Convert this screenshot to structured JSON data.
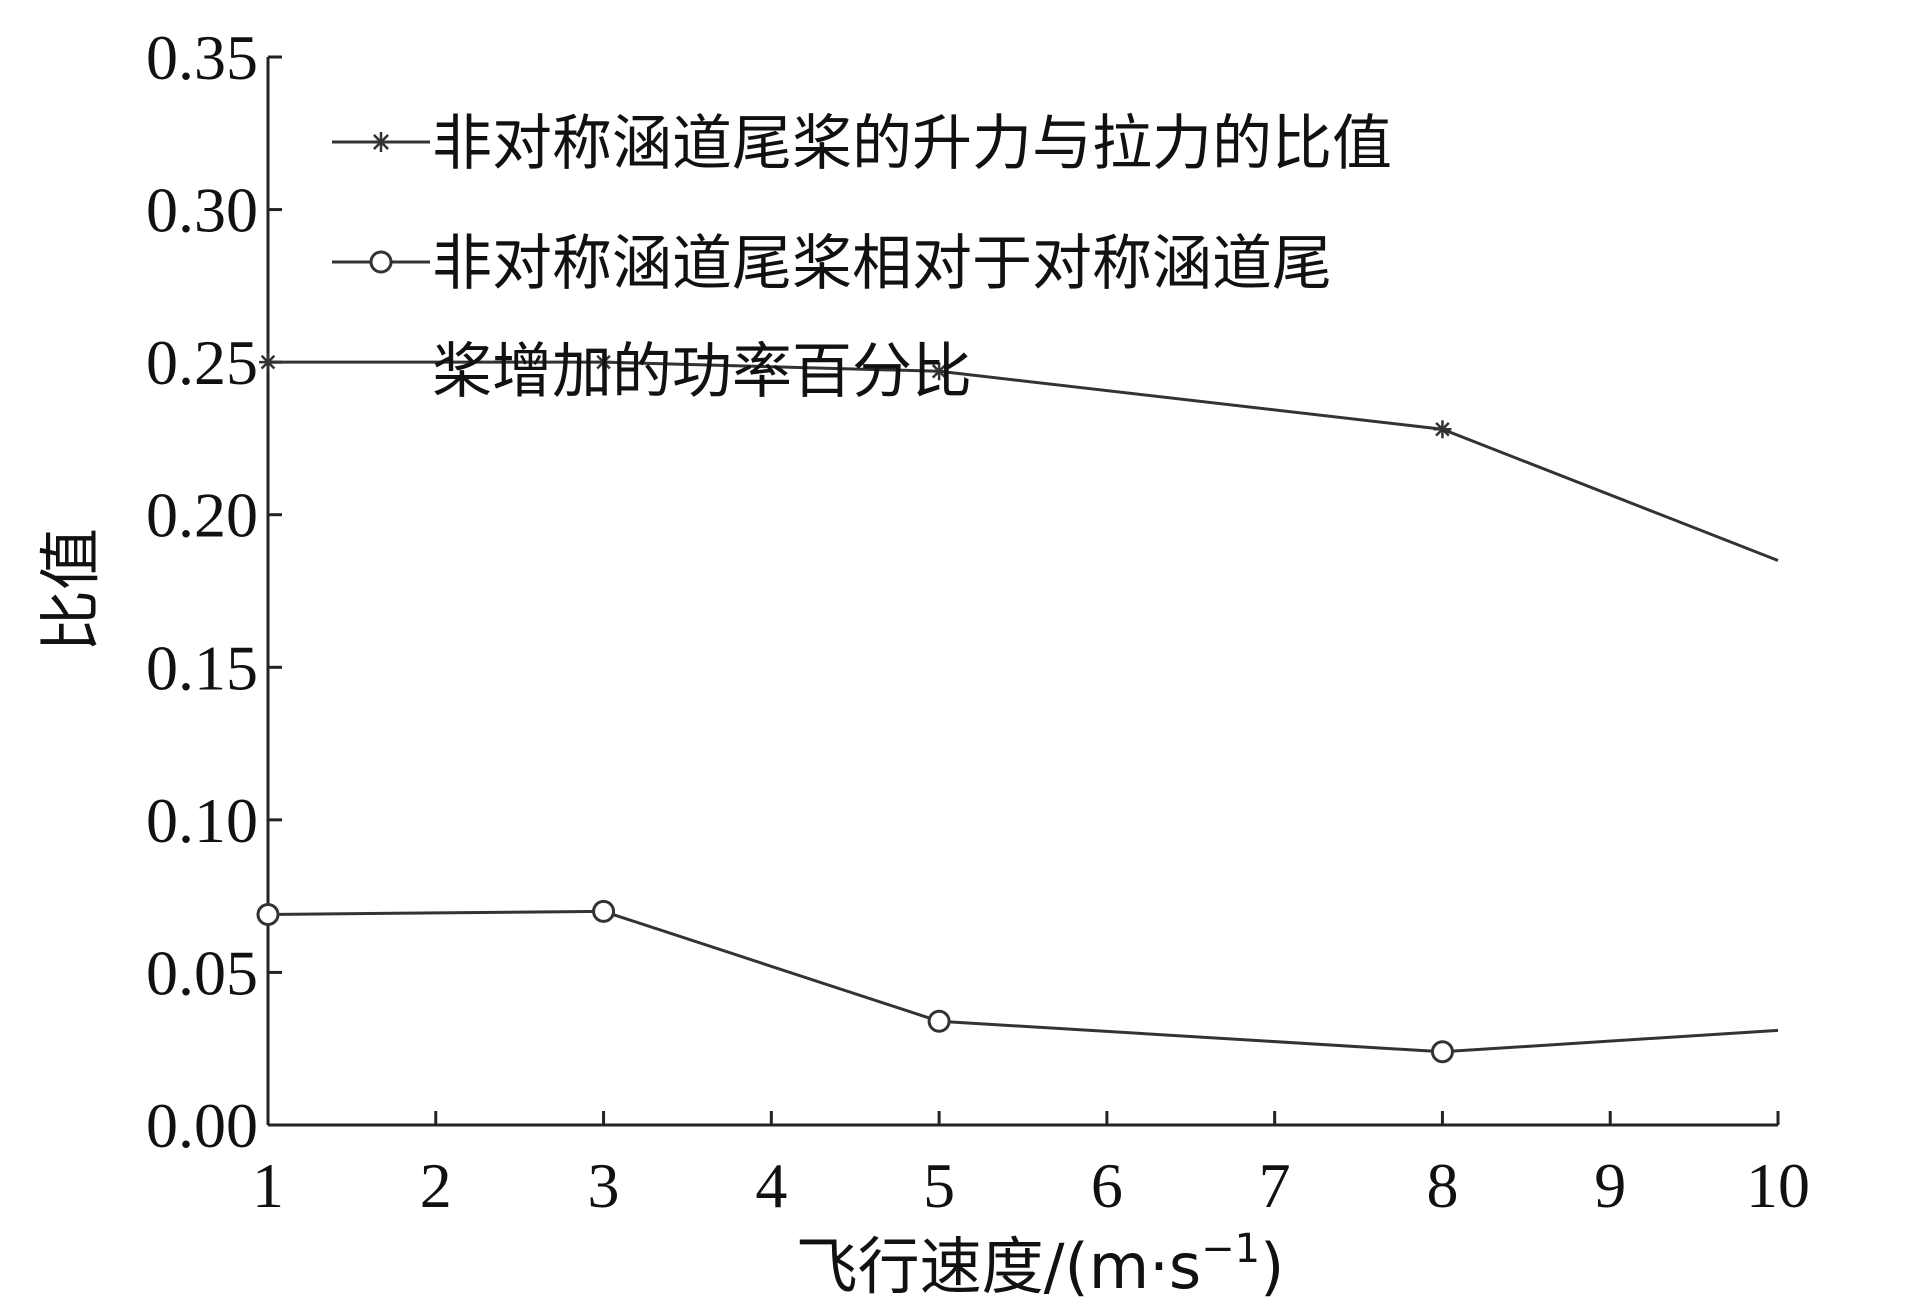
{
  "chart_data": {
    "type": "line",
    "title": "",
    "xlabel": "飞行速度/(m·s",
    "xlabel_sup": "−1",
    "xlabel_tail": ")",
    "ylabel": "比值",
    "x": [
      1,
      3,
      5,
      8,
      10
    ],
    "x_ticks": [
      "1",
      "2",
      "3",
      "4",
      "5",
      "6",
      "7",
      "8",
      "9",
      "10"
    ],
    "y_ticks": [
      "0.00",
      "0.05",
      "0.10",
      "0.15",
      "0.20",
      "0.25",
      "0.30",
      "0.35"
    ],
    "ylim": [
      0,
      0.35
    ],
    "grid": false,
    "legend_position": "top",
    "series": [
      {
        "name": "非对称涵道尾桨的升力与拉力的比值",
        "marker": "star",
        "values": [
          0.25,
          0.25,
          0.247,
          0.228,
          0.185
        ]
      },
      {
        "name": "非对称涵道尾桨相对于对称涵道尾桨增加的功率百分比",
        "name_lines": [
          "非对称涵道尾桨相对于对称涵道尾",
          "桨增加的功率百分比"
        ],
        "marker": "circle",
        "values": [
          0.069,
          0.07,
          0.034,
          0.024,
          0.031
        ]
      }
    ]
  }
}
